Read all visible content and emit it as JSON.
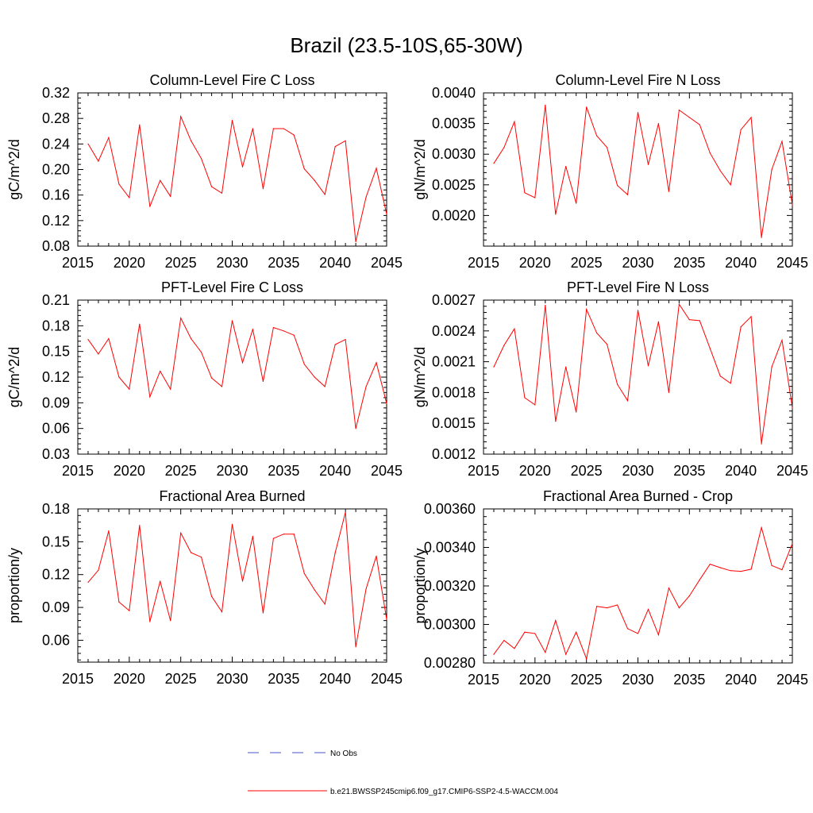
{
  "title": "Brazil (23.5-10S,65-30W)",
  "legend": [
    {
      "label": "No Obs",
      "color": "#4a55c8",
      "dash": "dashed"
    },
    {
      "label": "b.e21.BWSSP245cmip6.f09_g17.CMIP6-SSP2-4.5-WACCM.004",
      "color": "#ff0000",
      "dash": "solid"
    }
  ],
  "chart_data": [
    {
      "type": "line",
      "title": "Column-Level Fire C Loss",
      "ylabel": "gC/m^2/d",
      "xlim": [
        2015,
        2045
      ],
      "xticks": [
        "2015",
        "2020",
        "2025",
        "2030",
        "2035",
        "2040",
        "2045"
      ],
      "ylim": [
        0.08,
        0.32
      ],
      "yticks": [
        "0.08",
        "0.12",
        "0.16",
        "0.20",
        "0.24",
        "0.28",
        "0.32"
      ],
      "x": [
        2016,
        2017,
        2018,
        2019,
        2020,
        2021,
        2022,
        2023,
        2024,
        2025,
        2026,
        2027,
        2028,
        2029,
        2030,
        2031,
        2032,
        2033,
        2034,
        2035,
        2036,
        2037,
        2038,
        2039,
        2040,
        2041,
        2042,
        2043,
        2044,
        2045
      ],
      "series": [
        {
          "name": "b.e21.BWSSP245cmip6.f09_g17.CMIP6-SSP2-4.5-WACCM.004",
          "color": "#ff0000",
          "values": [
            0.24,
            0.213,
            0.25,
            0.177,
            0.156,
            0.27,
            0.142,
            0.183,
            0.158,
            0.283,
            0.245,
            0.217,
            0.173,
            0.163,
            0.277,
            0.204,
            0.264,
            0.17,
            0.264,
            0.264,
            0.254,
            0.201,
            0.183,
            0.161,
            0.236,
            0.245,
            0.087,
            0.157,
            0.202,
            0.13
          ]
        }
      ]
    },
    {
      "type": "line",
      "title": "Column-Level Fire N Loss",
      "ylabel": "gN/m^2/d",
      "xlim": [
        2015,
        2045
      ],
      "xticks": [
        "2015",
        "2020",
        "2025",
        "2030",
        "2035",
        "2040",
        "2045"
      ],
      "ylim": [
        0.0015,
        0.004
      ],
      "yticks": [
        "0.0020",
        "0.0025",
        "0.0030",
        "0.0035",
        "0.0040"
      ],
      "ytickvals": [
        0.002,
        0.0025,
        0.003,
        0.0035,
        0.004
      ],
      "x": [
        2016,
        2017,
        2018,
        2019,
        2020,
        2021,
        2022,
        2023,
        2024,
        2025,
        2026,
        2027,
        2028,
        2029,
        2030,
        2031,
        2032,
        2033,
        2034,
        2035,
        2036,
        2037,
        2038,
        2039,
        2040,
        2041,
        2042,
        2043,
        2044,
        2045
      ],
      "series": [
        {
          "name": "b.e21.BWSSP245cmip6.f09_g17.CMIP6-SSP2-4.5-WACCM.004",
          "color": "#ff0000",
          "values": [
            0.00285,
            0.00311,
            0.00353,
            0.00237,
            0.00229,
            0.0038,
            0.00202,
            0.0028,
            0.0022,
            0.00377,
            0.0033,
            0.00311,
            0.00249,
            0.00234,
            0.00368,
            0.00283,
            0.0035,
            0.00239,
            0.00372,
            0.0036,
            0.00348,
            0.00302,
            0.00273,
            0.0025,
            0.0034,
            0.0036,
            0.00164,
            0.00275,
            0.00321,
            0.00217
          ]
        }
      ]
    },
    {
      "type": "line",
      "title": "PFT-Level Fire C Loss",
      "ylabel": "gC/m^2/d",
      "xlim": [
        2015,
        2045
      ],
      "xticks": [
        "2015",
        "2020",
        "2025",
        "2030",
        "2035",
        "2040",
        "2045"
      ],
      "ylim": [
        0.03,
        0.21
      ],
      "yticks": [
        "0.03",
        "0.06",
        "0.09",
        "0.12",
        "0.15",
        "0.18",
        "0.21"
      ],
      "x": [
        2016,
        2017,
        2018,
        2019,
        2020,
        2021,
        2022,
        2023,
        2024,
        2025,
        2026,
        2027,
        2028,
        2029,
        2030,
        2031,
        2032,
        2033,
        2034,
        2035,
        2036,
        2037,
        2038,
        2039,
        2040,
        2041,
        2042,
        2043,
        2044,
        2045
      ],
      "series": [
        {
          "name": "b.e21.BWSSP245cmip6.f09_g17.CMIP6-SSP2-4.5-WACCM.004",
          "color": "#ff0000",
          "values": [
            0.164,
            0.147,
            0.165,
            0.12,
            0.106,
            0.182,
            0.097,
            0.127,
            0.106,
            0.189,
            0.165,
            0.149,
            0.119,
            0.109,
            0.186,
            0.137,
            0.176,
            0.115,
            0.178,
            0.174,
            0.169,
            0.135,
            0.12,
            0.109,
            0.158,
            0.164,
            0.06,
            0.109,
            0.137,
            0.089
          ]
        }
      ]
    },
    {
      "type": "line",
      "title": "PFT-Level Fire N Loss",
      "ylabel": "gN/m^2/d",
      "xlim": [
        2015,
        2045
      ],
      "xticks": [
        "2015",
        "2020",
        "2025",
        "2030",
        "2035",
        "2040",
        "2045"
      ],
      "ylim": [
        0.0012,
        0.0027
      ],
      "yticks": [
        "0.0012",
        "0.0015",
        "0.0018",
        "0.0021",
        "0.0024",
        "0.0027"
      ],
      "x": [
        2016,
        2017,
        2018,
        2019,
        2020,
        2021,
        2022,
        2023,
        2024,
        2025,
        2026,
        2027,
        2028,
        2029,
        2030,
        2031,
        2032,
        2033,
        2034,
        2035,
        2036,
        2037,
        2038,
        2039,
        2040,
        2041,
        2042,
        2043,
        2044,
        2045
      ],
      "series": [
        {
          "name": "b.e21.BWSSP245cmip6.f09_g17.CMIP6-SSP2-4.5-WACCM.004",
          "color": "#ff0000",
          "values": [
            0.00205,
            0.00226,
            0.00242,
            0.00175,
            0.00168,
            0.00265,
            0.00152,
            0.00205,
            0.00161,
            0.00261,
            0.00238,
            0.00227,
            0.00188,
            0.00172,
            0.0026,
            0.00206,
            0.00249,
            0.0018,
            0.00266,
            0.00251,
            0.0025,
            0.00223,
            0.00196,
            0.00189,
            0.00244,
            0.00254,
            0.0013,
            0.00205,
            0.00231,
            0.00165
          ]
        }
      ]
    },
    {
      "type": "line",
      "title": "Fractional Area Burned",
      "ylabel": "proportion/y",
      "xlim": [
        2015,
        2045
      ],
      "xticks": [
        "2015",
        "2020",
        "2025",
        "2030",
        "2035",
        "2040",
        "2045"
      ],
      "ylim": [
        0.04,
        0.18
      ],
      "yticks": [
        "0.06",
        "0.09",
        "0.12",
        "0.15",
        "0.18"
      ],
      "ytickvals": [
        0.06,
        0.09,
        0.12,
        0.15,
        0.18
      ],
      "x": [
        2016,
        2017,
        2018,
        2019,
        2020,
        2021,
        2022,
        2023,
        2024,
        2025,
        2026,
        2027,
        2028,
        2029,
        2030,
        2031,
        2032,
        2033,
        2034,
        2035,
        2036,
        2037,
        2038,
        2039,
        2040,
        2041,
        2042,
        2043,
        2044,
        2045
      ],
      "series": [
        {
          "name": "b.e21.BWSSP245cmip6.f09_g17.CMIP6-SSP2-4.5-WACCM.004",
          "color": "#ff0000",
          "values": [
            0.113,
            0.124,
            0.16,
            0.095,
            0.087,
            0.165,
            0.077,
            0.114,
            0.078,
            0.158,
            0.14,
            0.136,
            0.1,
            0.086,
            0.166,
            0.114,
            0.155,
            0.085,
            0.153,
            0.157,
            0.157,
            0.121,
            0.106,
            0.093,
            0.14,
            0.177,
            0.054,
            0.107,
            0.137,
            0.079
          ]
        }
      ]
    },
    {
      "type": "line",
      "title": "Fractional Area Burned - Crop",
      "ylabel": "proportion/y",
      "xlim": [
        2015,
        2045
      ],
      "xticks": [
        "2015",
        "2020",
        "2025",
        "2030",
        "2035",
        "2040",
        "2045"
      ],
      "ylim": [
        0.0028,
        0.0036
      ],
      "yticks": [
        "0.00280",
        "0.00300",
        "0.00320",
        "0.00340",
        "0.00360"
      ],
      "x": [
        2016,
        2017,
        2018,
        2019,
        2020,
        2021,
        2022,
        2023,
        2024,
        2025,
        2026,
        2027,
        2028,
        2029,
        2030,
        2031,
        2032,
        2033,
        2034,
        2035,
        2036,
        2037,
        2038,
        2039,
        2040,
        2041,
        2042,
        2043,
        2044,
        2045
      ],
      "series": [
        {
          "name": "b.e21.BWSSP245cmip6.f09_g17.CMIP6-SSP2-4.5-WACCM.004",
          "color": "#ff0000",
          "values": [
            0.002845,
            0.002917,
            0.002875,
            0.00296,
            0.002953,
            0.002855,
            0.00302,
            0.002845,
            0.00296,
            0.002822,
            0.003094,
            0.003086,
            0.003101,
            0.002978,
            0.002953,
            0.003078,
            0.002946,
            0.003189,
            0.003086,
            0.003148,
            0.003232,
            0.003313,
            0.003295,
            0.003279,
            0.003276,
            0.003287,
            0.003503,
            0.003306,
            0.003284,
            0.00342
          ]
        }
      ]
    }
  ]
}
